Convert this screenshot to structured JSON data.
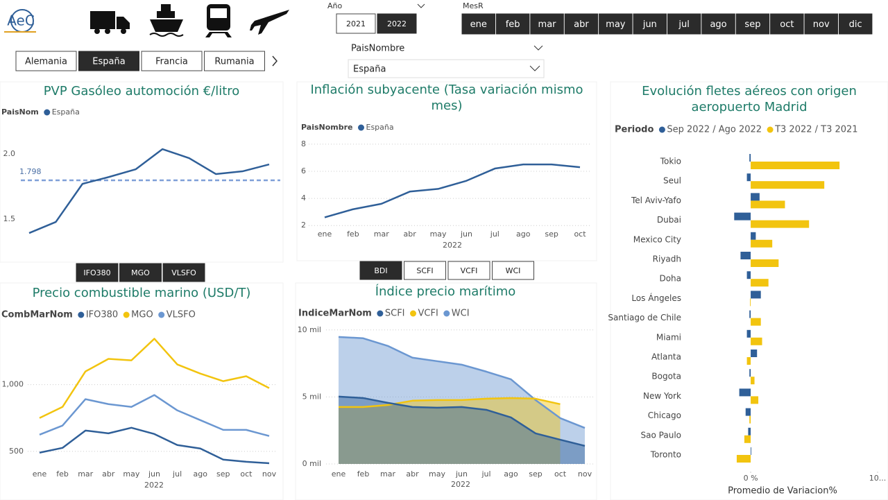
{
  "header": {
    "logo_text": "AeC"
  },
  "filters": {
    "year": {
      "label": "Año",
      "options": [
        "2021",
        "2022"
      ],
      "selected": "2022"
    },
    "month": {
      "label": "MesR",
      "options": [
        "ene",
        "feb",
        "mar",
        "abr",
        "may",
        "jun",
        "jul",
        "ago",
        "sep",
        "oct",
        "nov",
        "dic"
      ]
    },
    "countries": {
      "options": [
        "Alemania",
        "España",
        "Francia",
        "Rumania"
      ],
      "selected": "España"
    },
    "pais_dropdown": {
      "label": "PaisNombre",
      "value": "España"
    },
    "fuel_buttons": {
      "options": [
        "IFO380",
        "MGO",
        "VLSFO"
      ]
    },
    "index_buttons": {
      "options": [
        "BDI",
        "SCFI",
        "VCFI",
        "WCI"
      ],
      "selected": "BDI"
    }
  },
  "chart_data": [
    {
      "type": "line",
      "title": "PVP Gasóleo automoción €/litro",
      "legend_title": "PaisNom",
      "series": [
        {
          "name": "España",
          "color": "#2f5f98",
          "values": [
            1.394,
            1.479,
            1.771,
            1.824,
            1.883,
            2.037,
            1.968,
            1.846,
            1.867,
            1.92
          ]
        }
      ],
      "ylim": [
        1.32,
        2.17
      ],
      "yticks": [
        1.5,
        {
          "value": 2,
          "label": "2.0"
        }
      ],
      "grid": false,
      "reference_line": {
        "value": 1.798,
        "label": "1.798",
        "color": "#7f9fd8"
      }
    },
    {
      "type": "line",
      "title": "Inflación subyacente (Tasa variación mismo mes)",
      "legend_title": "PaisNombre",
      "categories": [
        "ene",
        "feb",
        "mar",
        "abr",
        "may",
        "jun",
        "jul",
        "ago",
        "sep",
        "oct"
      ],
      "xlabel": "2022",
      "series": [
        {
          "name": "España",
          "color": "#2f5f98",
          "values": [
            2.6,
            3.2,
            3.6,
            4.5,
            4.7,
            5.3,
            6.2,
            6.5,
            6.5,
            6.3
          ]
        }
      ],
      "ylim": [
        1.5,
        8.4
      ],
      "yticks": [
        2,
        4,
        6,
        8
      ],
      "grid": true
    },
    {
      "type": "line",
      "title": "Precio combustible marino (USD/T)",
      "legend_title": "CombMarNom",
      "categories": [
        "ene",
        "feb",
        "mar",
        "abr",
        "may",
        "jun",
        "jul",
        "ago",
        "sep",
        "oct",
        "nov"
      ],
      "xlabel": "2022",
      "series": [
        {
          "name": "IFO380",
          "color": "#2f5f98",
          "values": [
            490,
            526,
            656,
            635,
            677,
            630,
            547,
            521,
            438,
            422,
            411
          ]
        },
        {
          "name": "MGO",
          "color": "#f2c40f",
          "values": [
            750,
            833,
            1099,
            1193,
            1182,
            1344,
            1151,
            1083,
            1026,
            1063,
            974
          ]
        },
        {
          "name": "VLSFO",
          "color": "#6b97d1",
          "values": [
            625,
            693,
            891,
            854,
            833,
            922,
            807,
            734,
            661,
            661,
            615
          ]
        }
      ],
      "ylim": [
        390,
        1440
      ],
      "yticks": [
        500,
        {
          "value": 1000,
          "label": "1,000"
        }
      ],
      "grid": true
    },
    {
      "type": "area",
      "title": "Índice precio marítimo",
      "legend_title": "IndiceMarNom",
      "categories": [
        "ene",
        "feb",
        "mar",
        "abr",
        "may",
        "jun",
        "jul",
        "ago",
        "sep",
        "oct",
        "nov"
      ],
      "xlabel": "2022",
      "series": [
        {
          "name": "SCFI",
          "color": "#2f5f98",
          "values": [
            5030,
            4920,
            4560,
            4250,
            4200,
            4250,
            4040,
            3470,
            2280,
            1810,
            1350
          ]
        },
        {
          "name": "VCFI",
          "color": "#f2c40f",
          "values": [
            4250,
            4250,
            4400,
            4720,
            4770,
            4770,
            4870,
            4920,
            4870,
            4460,
            null
          ]
        },
        {
          "name": "WCI",
          "color": "#6b97d1",
          "values": [
            9480,
            9380,
            8810,
            7930,
            7670,
            7410,
            6890,
            6320,
            4770,
            3420,
            2690
          ]
        }
      ],
      "ylim": [
        0,
        10300
      ],
      "yticks": [
        {
          "value": 0,
          "label": "0 mil"
        },
        {
          "value": 5000,
          "label": "5 mil"
        },
        {
          "value": 10000,
          "label": "10 mil"
        }
      ],
      "grid": true
    },
    {
      "type": "hbar",
      "title": "Evolución fletes aéreos con origen aeropuerto Madrid",
      "legend_title": "Periodo",
      "categories": [
        "Tokio",
        "Seul",
        "Tel Aviv-Yafo",
        "Dubai",
        "Mexico City",
        "Riyadh",
        "Doha",
        "Los Ángeles",
        "Santiago de Chile",
        "Miami",
        "Atlanta",
        "Bogota",
        "New York",
        "Chicago",
        "Sao Paulo",
        "Toronto"
      ],
      "series": [
        {
          "name": "Sep 2022 / Ago 2022",
          "color": "#2f5f98",
          "values": [
            -0.1,
            -0.3,
            0.7,
            -1.3,
            0.4,
            -0.8,
            -0.3,
            0.8,
            -0.1,
            -0.3,
            0.5,
            -0.1,
            -0.9,
            -0.4,
            -0.2,
            0.05
          ]
        },
        {
          "name": "T3 2022 / T3 2021",
          "color": "#f2c40f",
          "values": [
            7.0,
            5.8,
            2.7,
            4.6,
            1.7,
            2.2,
            1.4,
            -0.05,
            0.8,
            0.9,
            -0.3,
            0.3,
            0.6,
            -0.1,
            -0.5,
            -1.1
          ]
        }
      ],
      "xlim": [
        -2.3,
        10
      ],
      "xticks": [
        {
          "value": 0,
          "label": "0 %"
        },
        {
          "value": 10,
          "label": "10..."
        }
      ],
      "xlabel": "Promedio de Variacion%"
    }
  ]
}
